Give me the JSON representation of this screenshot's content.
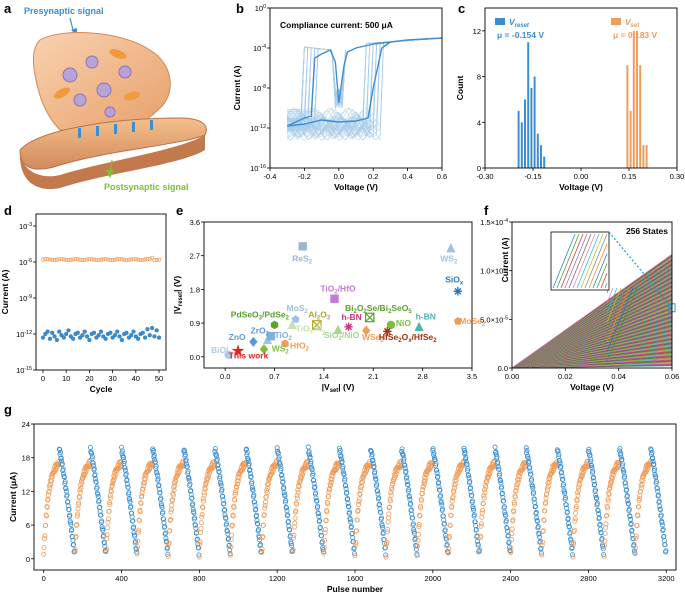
{
  "colors": {
    "blue": "#3b8ed2",
    "blue_light": "#a9cdea",
    "orange": "#ef9d5b",
    "orange_light": "#f6c79d",
    "red": "#e8211c",
    "line_series_a": "#1f77b4",
    "line_series_b": "#2ca02c",
    "line_series_c": "#d62728",
    "line_series_d": "#9467bd",
    "line_series_e": "#8c564b",
    "line_series_f": "#e377c2",
    "line_series_g": "#17becf",
    "line_series_h": "#bcbd22",
    "line_series_i": "#7f7f7f",
    "line_series_j": "#ff7f0e"
  },
  "panels": {
    "a": {
      "letter": "a",
      "presynaptic": "Presynaptic signal",
      "postsynaptic": "Postsynaptic signal"
    },
    "b": {
      "letter": "b"
    },
    "c": {
      "letter": "c"
    },
    "d": {
      "letter": "d"
    },
    "e": {
      "letter": "e"
    },
    "f": {
      "letter": "f"
    },
    "g": {
      "letter": "g"
    }
  },
  "chart_data": [
    {
      "id": "b",
      "type": "line",
      "title": "Compliance current: 500 μA",
      "xlabel": "Voltage (V)",
      "ylabel": "Current (A)",
      "xlim": [
        -0.4,
        0.6
      ],
      "ylim_log10": [
        -16,
        0
      ],
      "xticks": [
        "-0.4",
        "-0.2",
        "0.0",
        "0.2",
        "0.4",
        "0.6"
      ],
      "yticks": [
        "10-16",
        "10-12",
        "10-8",
        "10-4",
        "100"
      ],
      "series": [
        {
          "name": "average",
          "x": [
            -0.3,
            -0.25,
            -0.2,
            -0.16,
            -0.14,
            -0.1,
            -0.05,
            -0.02,
            0.0,
            0.03,
            0.05,
            0.1,
            0.15,
            0.18,
            0.2,
            0.25,
            0.3,
            0.4,
            0.5,
            0.6
          ],
          "log10_current": [
            -11.8,
            -11.4,
            -11.0,
            -10.8,
            -5.0,
            -4.6,
            -4.2,
            -5.4,
            -9.5,
            -5.8,
            -4.4,
            -4.0,
            -3.8,
            -3.7,
            -3.6,
            -3.5,
            -3.4,
            -3.2,
            -3.1,
            -3.0
          ],
          "color": "#3b8ed2"
        },
        {
          "name": "average_return",
          "x": [
            -0.3,
            -0.2,
            -0.1,
            0.0,
            0.1,
            0.17,
            0.2,
            0.25,
            0.3
          ],
          "log10_current": [
            -11.8,
            -11.6,
            -11.2,
            -11.4,
            -11.3,
            -11.0,
            -8.0,
            -4.0,
            -3.4
          ],
          "color": "#3b8ed2"
        }
      ]
    },
    {
      "id": "c",
      "type": "bar",
      "xlabel": "Voltage (V)",
      "ylabel": "Count",
      "xlim": [
        -0.3,
        0.3
      ],
      "ylim": [
        0,
        14
      ],
      "xticks": [
        "-0.30",
        "-0.15",
        "0.00",
        "0.15",
        "0.30"
      ],
      "yticks": [
        "0",
        "4",
        "8",
        "12"
      ],
      "legend": [
        {
          "label": "V",
          "sub": "reset",
          "mu": "μ = -0.154 V",
          "color": "#3b8ed2"
        },
        {
          "label": "V",
          "sub": "set",
          "mu": "μ = 0.183 V",
          "color": "#ef9d5b"
        }
      ],
      "series": [
        {
          "name": "Vreset",
          "color": "#3b8ed2",
          "bin_centers": [
            -0.195,
            -0.185,
            -0.175,
            -0.165,
            -0.155,
            -0.145,
            -0.135,
            -0.125,
            -0.115
          ],
          "values": [
            5,
            4,
            6,
            11,
            7,
            8,
            3,
            2,
            1
          ]
        },
        {
          "name": "Vset",
          "color": "#ef9d5b",
          "bin_centers": [
            0.145,
            0.155,
            0.165,
            0.175,
            0.185,
            0.195,
            0.205
          ],
          "values": [
            9,
            5,
            12,
            12,
            9,
            2,
            2
          ]
        }
      ]
    },
    {
      "id": "d",
      "type": "scatter",
      "xlabel": "Cycle",
      "ylabel": "Current (A)",
      "xlim": [
        -3,
        53
      ],
      "ylim_log10": [
        -15,
        -2
      ],
      "xticks": [
        "0",
        "10",
        "20",
        "30",
        "40",
        "50"
      ],
      "yticks": [
        "10-15",
        "10-12",
        "10-9",
        "10-6",
        "10-3"
      ],
      "series": [
        {
          "name": "LRS",
          "color": "#ef9d5b",
          "log10_current_mean": -5.8
        },
        {
          "name": "HRS",
          "color": "#3b8ed2",
          "log10_current": [
            -12.3,
            -12.0,
            -11.8,
            -12.4,
            -11.9,
            -12.2,
            -12.5,
            -11.8,
            -12.1,
            -12.3,
            -12.0,
            -11.7,
            -12.2,
            -12.4,
            -12.0,
            -11.9,
            -12.3,
            -12.1,
            -11.8,
            -12.2,
            -12.5,
            -12.0,
            -11.9,
            -12.3,
            -12.1,
            -11.8,
            -12.2,
            -12.4,
            -12.0,
            -11.9,
            -12.3,
            -12.1,
            -11.8,
            -12.2,
            -12.5,
            -12.0,
            -11.9,
            -12.3,
            -12.1,
            -11.8,
            -12.2,
            -12.4,
            -12.0,
            -11.9,
            -12.3,
            -11.6,
            -12.1,
            -11.5,
            -12.2,
            -11.7,
            -12.3
          ]
        }
      ]
    },
    {
      "id": "e",
      "type": "scatter",
      "xlabel": "|V_set| (V)",
      "ylabel": "|V_reset| (V)",
      "xlim": [
        -0.3,
        3.5
      ],
      "ylim": [
        -0.3,
        3.6
      ],
      "xticks": [
        "0.0",
        "0.7",
        "1.4",
        "2.1",
        "2.8",
        "3.5"
      ],
      "yticks": [
        "0.0",
        "0.9",
        "1.8",
        "2.7",
        "3.6"
      ],
      "points": [
        {
          "label": "This work",
          "x": 0.183,
          "y": 0.154,
          "color": "#e8211c",
          "shape": "star"
        },
        {
          "label": "BiOI",
          "x": 0.05,
          "y": 0.05,
          "color": "#a9cdea",
          "shape": "circle"
        },
        {
          "label": "ZnO",
          "x": 0.4,
          "y": 0.4,
          "color": "#5b9bd5",
          "shape": "diamond"
        },
        {
          "label": "ZrO2",
          "x": 0.6,
          "y": 0.45,
          "color": "#9dc3e6",
          "shape": "triangle"
        },
        {
          "label": "TiO2",
          "x": 0.65,
          "y": 0.55,
          "color": "#7fb0df",
          "shape": "square"
        },
        {
          "label": "WS2",
          "x": 0.55,
          "y": 0.2,
          "color": "#7cbf3b",
          "shape": "diamond"
        },
        {
          "label": "HfO2",
          "x": 0.85,
          "y": 0.35,
          "color": "#ef9d5b",
          "shape": "hexagon"
        },
        {
          "label": "PdSeO3/PdSe2",
          "x": 0.7,
          "y": 0.85,
          "color": "#5aa02c",
          "shape": "hexagon"
        },
        {
          "label": "MoS2",
          "x": 1.0,
          "y": 1.0,
          "color": "#9dc3e6",
          "shape": "pentagon"
        },
        {
          "label": "TiOxNy",
          "x": 0.95,
          "y": 0.85,
          "color": "#c5e0b4",
          "shape": "triangle"
        },
        {
          "label": "Al2O3",
          "x": 1.3,
          "y": 0.85,
          "color": "#b5a52a",
          "shape": "xsquare"
        },
        {
          "label": "ReS2",
          "x": 1.1,
          "y": 2.95,
          "color": "#9fb6cd",
          "shape": "square"
        },
        {
          "label": "TiO2/HfO",
          "x": 1.55,
          "y": 1.55,
          "color": "#c27ad6",
          "shape": "square"
        },
        {
          "label": "Bi2O2Se/Bi2SeO5",
          "x": 2.05,
          "y": 1.05,
          "color": "#5aa02c",
          "shape": "xsquare"
        },
        {
          "label": "h-BN",
          "x": 1.75,
          "y": 0.8,
          "color": "#d6317f",
          "shape": "asterisk"
        },
        {
          "label": "SiO2/NiO",
          "x": 1.6,
          "y": 0.72,
          "color": "#a6d68a",
          "shape": "triangle"
        },
        {
          "label": "WSe2",
          "x": 2.0,
          "y": 0.7,
          "color": "#ef9d5b",
          "shape": "diamond"
        },
        {
          "label": "NiO",
          "x": 2.35,
          "y": 0.85,
          "color": "#7cbf3b",
          "shape": "circle"
        },
        {
          "label": "HfSe2Ox/HfSe2",
          "x": 2.3,
          "y": 0.68,
          "color": "#a5310e",
          "shape": "asterisk"
        },
        {
          "label": "h-BN",
          "x": 2.75,
          "y": 0.8,
          "color": "#4db6ac",
          "shape": "triangle"
        },
        {
          "label": "WS2",
          "x": 3.2,
          "y": 2.9,
          "color": "#9dc3e6",
          "shape": "triangle"
        },
        {
          "label": "SiOx",
          "x": 3.3,
          "y": 1.75,
          "color": "#2e75b6",
          "shape": "asterisk"
        },
        {
          "label": "MoSe2",
          "x": 3.3,
          "y": 0.95,
          "color": "#ef9d5b",
          "shape": "pentagon"
        }
      ]
    },
    {
      "id": "f",
      "type": "line",
      "title": "256 States",
      "xlabel": "Voltage (V)",
      "ylabel": "Current (A)",
      "xlim": [
        0,
        0.06
      ],
      "ylim": [
        0,
        0.00015
      ],
      "xticks": [
        "0.00",
        "0.02",
        "0.04",
        "0.06"
      ],
      "yticks": [
        "0.0",
        "5.0×10-5",
        "1.0×10-4",
        "1.5×10-4"
      ],
      "state_count": 256,
      "max_current_at_0_06": 0.000117,
      "min_current_at_0_06": 2.2e-06
    },
    {
      "id": "g",
      "type": "scatter",
      "xlabel": "Pulse number",
      "ylabel": "Current (μA)",
      "xlim": [
        -50,
        3250
      ],
      "ylim": [
        -2,
        24
      ],
      "xticks": [
        "0",
        "400",
        "800",
        "1200",
        "1600",
        "2000",
        "2400",
        "2800",
        "3200"
      ],
      "yticks": [
        "0",
        "6",
        "12",
        "18",
        "24"
      ],
      "cycles": 20,
      "pulses_per_half_cycle": 80,
      "potentiation_color": "#ef9d5b",
      "depression_color": "#3b8ed2",
      "max_current": 19.5,
      "min_current": 0.8
    }
  ],
  "panel_e_labels": {
    "this_work": "This work",
    "BiOI": "BiOI",
    "ZnO": "ZnO",
    "ZrO2": "ZrO",
    "TiO2": "TiO",
    "WS2a": "WS",
    "HfO2": "HfO",
    "PdSe": "PdSeO",
    "PdSe2": "/PdSe",
    "MoS2": "MoS",
    "TiON": "TiO",
    "TiON2": ":N",
    "Al2O3": "Al",
    "Al2O3b": "O",
    "ReS2": "ReS",
    "TiHfO": "TiO",
    "TiHfO2": "/HfO",
    "BiSe": "Bi",
    "BiSe2": "O",
    "BiSe3": "Se/Bi",
    "BiSe4": "SeO",
    "hBN1": "h-BN",
    "SiONiO": "SiO",
    "SiONiO2": "/NiO",
    "WSe2": "WSe",
    "NiO": "NiO",
    "HfSe": "HfSe",
    "HfSe2": "O",
    "HfSe3": "/HfSe",
    "hBN2": "h-BN",
    "WS2b": "WS",
    "SiOx": "SiO",
    "MoSe2": "MoSe",
    "sub2": "2",
    "sub3": "3",
    "sub5": "5",
    "subx": "x",
    "suby": "y"
  }
}
